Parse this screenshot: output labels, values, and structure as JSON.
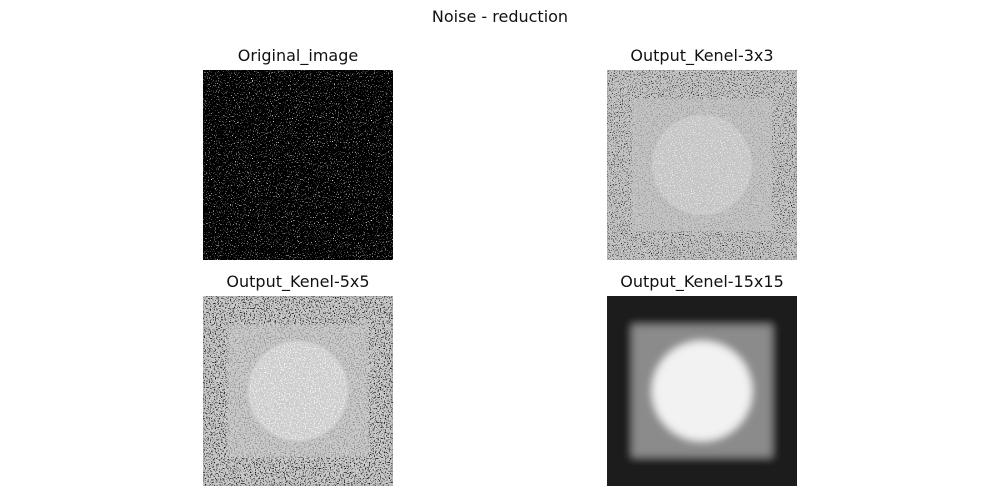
{
  "figure": {
    "title": "Noise - reduction"
  },
  "panels": [
    {
      "title": "Original_image"
    },
    {
      "title": "Output_Kenel-3x3"
    },
    {
      "title": "Output_Kenel-5x5"
    },
    {
      "title": "Output_Kenel-15x15"
    }
  ]
}
